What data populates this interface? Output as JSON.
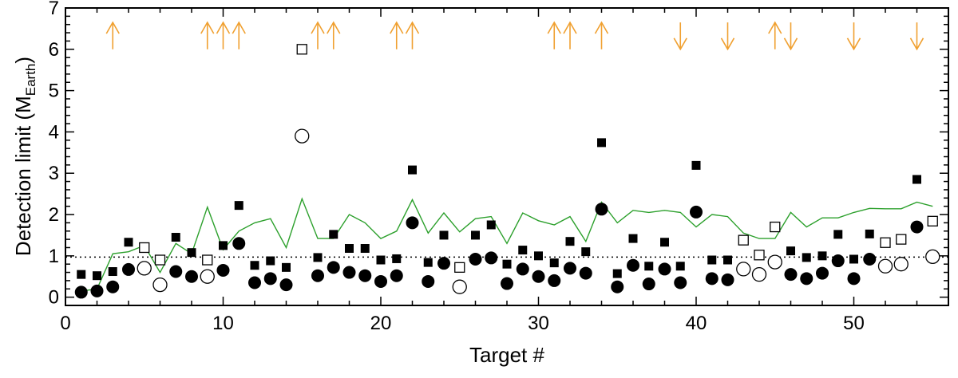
{
  "chart_data": {
    "type": "scatter",
    "xlabel": "Target #",
    "ylabel_main": "Detection limit (M",
    "ylabel_sub": "Earth",
    "ylabel_close": ")",
    "xlim": [
      0,
      56
    ],
    "ylim": [
      -0.2,
      7
    ],
    "xticks": [
      0,
      10,
      20,
      30,
      40,
      50
    ],
    "yticks": [
      0,
      1,
      2,
      3,
      4,
      5,
      6,
      7
    ],
    "reference_line": {
      "y": 0.97,
      "style": "dotted"
    },
    "colors": {
      "line": "#2ca02c",
      "arrow": "#f0a030",
      "marker": "#000000"
    },
    "series": [
      {
        "marker": "filled-square",
        "points": [
          [
            1,
            0.55
          ],
          [
            2,
            0.52
          ],
          [
            3,
            0.62
          ],
          [
            4,
            1.33
          ],
          [
            7,
            1.45
          ],
          [
            8,
            1.08
          ],
          [
            10,
            1.25
          ],
          [
            11,
            2.22
          ],
          [
            12,
            0.77
          ],
          [
            13,
            0.88
          ],
          [
            14,
            0.72
          ],
          [
            16,
            0.96
          ],
          [
            17,
            1.52
          ],
          [
            18,
            1.18
          ],
          [
            19,
            1.18
          ],
          [
            20,
            0.9
          ],
          [
            21,
            0.93
          ],
          [
            22,
            3.08
          ],
          [
            23,
            0.84
          ],
          [
            24,
            1.5
          ],
          [
            26,
            1.5
          ],
          [
            27,
            1.75
          ],
          [
            28,
            0.8
          ],
          [
            29,
            1.14
          ],
          [
            30,
            1.0
          ],
          [
            31,
            0.83
          ],
          [
            32,
            1.35
          ],
          [
            33,
            1.1
          ],
          [
            34,
            3.74
          ],
          [
            35,
            0.57
          ],
          [
            36,
            1.42
          ],
          [
            37,
            0.75
          ],
          [
            38,
            1.33
          ],
          [
            39,
            0.75
          ],
          [
            40,
            3.19
          ],
          [
            41,
            0.9
          ],
          [
            42,
            0.9
          ],
          [
            46,
            1.12
          ],
          [
            47,
            0.96
          ],
          [
            48,
            1.0
          ],
          [
            49,
            1.52
          ],
          [
            50,
            0.92
          ],
          [
            51,
            1.53
          ],
          [
            54,
            2.85
          ]
        ]
      },
      {
        "marker": "open-square",
        "points": [
          [
            5,
            1.2
          ],
          [
            6,
            0.9
          ],
          [
            9,
            0.9
          ],
          [
            15,
            6.0
          ],
          [
            25,
            0.72
          ],
          [
            43,
            1.38
          ],
          [
            44,
            1.02
          ],
          [
            45,
            1.7
          ],
          [
            52,
            1.32
          ],
          [
            53,
            1.4
          ],
          [
            55,
            1.84
          ]
        ]
      },
      {
        "marker": "filled-circle",
        "points": [
          [
            1,
            0.12
          ],
          [
            2,
            0.15
          ],
          [
            3,
            0.25
          ],
          [
            4,
            0.67
          ],
          [
            7,
            0.62
          ],
          [
            8,
            0.5
          ],
          [
            10,
            0.65
          ],
          [
            11,
            1.3
          ],
          [
            12,
            0.35
          ],
          [
            13,
            0.45
          ],
          [
            14,
            0.3
          ],
          [
            16,
            0.52
          ],
          [
            17,
            0.72
          ],
          [
            18,
            0.6
          ],
          [
            19,
            0.52
          ],
          [
            20,
            0.38
          ],
          [
            21,
            0.52
          ],
          [
            22,
            1.8
          ],
          [
            23,
            0.38
          ],
          [
            24,
            0.82
          ],
          [
            26,
            0.92
          ],
          [
            27,
            0.95
          ],
          [
            28,
            0.33
          ],
          [
            29,
            0.68
          ],
          [
            30,
            0.5
          ],
          [
            31,
            0.4
          ],
          [
            32,
            0.7
          ],
          [
            33,
            0.58
          ],
          [
            34,
            2.13
          ],
          [
            35,
            0.25
          ],
          [
            36,
            0.77
          ],
          [
            37,
            0.32
          ],
          [
            38,
            0.68
          ],
          [
            39,
            0.35
          ],
          [
            40,
            2.06
          ],
          [
            41,
            0.45
          ],
          [
            42,
            0.42
          ],
          [
            46,
            0.55
          ],
          [
            47,
            0.45
          ],
          [
            48,
            0.58
          ],
          [
            49,
            0.88
          ],
          [
            50,
            0.45
          ],
          [
            51,
            0.92
          ],
          [
            54,
            1.7
          ]
        ]
      },
      {
        "marker": "open-circle",
        "points": [
          [
            5,
            0.7
          ],
          [
            6,
            0.3
          ],
          [
            9,
            0.5
          ],
          [
            15,
            3.9
          ],
          [
            25,
            0.25
          ],
          [
            43,
            0.68
          ],
          [
            44,
            0.55
          ],
          [
            45,
            0.85
          ],
          [
            52,
            0.75
          ],
          [
            53,
            0.8
          ],
          [
            55,
            0.98
          ]
        ]
      },
      {
        "marker": "line",
        "points": [
          [
            1,
            0.15
          ],
          [
            2,
            0.2
          ],
          [
            3,
            1.05
          ],
          [
            4,
            1.1
          ],
          [
            5,
            1.25
          ],
          [
            6,
            0.6
          ],
          [
            7,
            1.3
          ],
          [
            8,
            1.05
          ],
          [
            9,
            2.18
          ],
          [
            10,
            1.15
          ],
          [
            11,
            1.6
          ],
          [
            12,
            1.8
          ],
          [
            13,
            1.9
          ],
          [
            14,
            1.2
          ],
          [
            15,
            2.38
          ],
          [
            16,
            1.42
          ],
          [
            17,
            1.42
          ],
          [
            18,
            2.0
          ],
          [
            19,
            1.8
          ],
          [
            20,
            1.42
          ],
          [
            21,
            1.6
          ],
          [
            22,
            2.36
          ],
          [
            23,
            1.55
          ],
          [
            24,
            2.04
          ],
          [
            25,
            1.58
          ],
          [
            26,
            1.9
          ],
          [
            27,
            1.95
          ],
          [
            28,
            1.3
          ],
          [
            29,
            2.04
          ],
          [
            30,
            1.85
          ],
          [
            31,
            1.75
          ],
          [
            32,
            1.95
          ],
          [
            33,
            1.35
          ],
          [
            34,
            2.3
          ],
          [
            35,
            1.8
          ],
          [
            36,
            2.1
          ],
          [
            37,
            2.05
          ],
          [
            38,
            2.1
          ],
          [
            39,
            2.05
          ],
          [
            40,
            1.7
          ],
          [
            41,
            2.0
          ],
          [
            42,
            1.95
          ],
          [
            43,
            1.55
          ],
          [
            44,
            1.42
          ],
          [
            45,
            1.42
          ],
          [
            46,
            2.05
          ],
          [
            47,
            1.7
          ],
          [
            48,
            1.92
          ],
          [
            49,
            1.92
          ],
          [
            50,
            2.05
          ],
          [
            51,
            2.15
          ],
          [
            52,
            2.14
          ],
          [
            53,
            2.14
          ],
          [
            54,
            2.3
          ],
          [
            55,
            2.2
          ]
        ]
      }
    ],
    "arrows_up": [
      3,
      9,
      10,
      11,
      16,
      17,
      21,
      22,
      31,
      32,
      34,
      45
    ],
    "arrows_down": [
      39,
      42,
      46,
      50,
      54
    ]
  }
}
